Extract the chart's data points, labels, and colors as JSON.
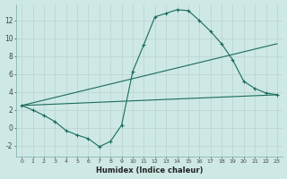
{
  "xlabel": "Humidex (Indice chaleur)",
  "background_color": "#cde8e5",
  "grid_color": "#c0d8d5",
  "line_color": "#1a6b5e",
  "xlim": [
    -0.5,
    23.5
  ],
  "ylim": [
    -3.2,
    13.8
  ],
  "xticks": [
    0,
    1,
    2,
    3,
    4,
    5,
    6,
    7,
    8,
    9,
    10,
    11,
    12,
    13,
    14,
    15,
    16,
    17,
    18,
    19,
    20,
    21,
    22,
    23
  ],
  "yticks": [
    -2,
    0,
    2,
    4,
    6,
    8,
    10,
    12
  ],
  "line1_x": [
    0,
    1,
    2,
    3,
    4,
    5,
    6,
    7,
    8,
    9,
    10,
    11,
    12,
    13,
    14,
    15,
    16,
    17,
    18,
    19,
    20,
    21,
    22,
    23
  ],
  "line1_y": [
    2.5,
    2.0,
    1.4,
    0.7,
    -0.3,
    -0.8,
    -1.2,
    -2.1,
    -1.5,
    0.3,
    6.3,
    9.3,
    12.4,
    12.8,
    13.2,
    13.1,
    12.0,
    10.8,
    9.4,
    7.6,
    5.2,
    4.4,
    3.9,
    3.7
  ],
  "line2_x": [
    0,
    23
  ],
  "line2_y": [
    2.5,
    9.4
  ],
  "line3_x": [
    0,
    23
  ],
  "line3_y": [
    2.5,
    3.7
  ]
}
